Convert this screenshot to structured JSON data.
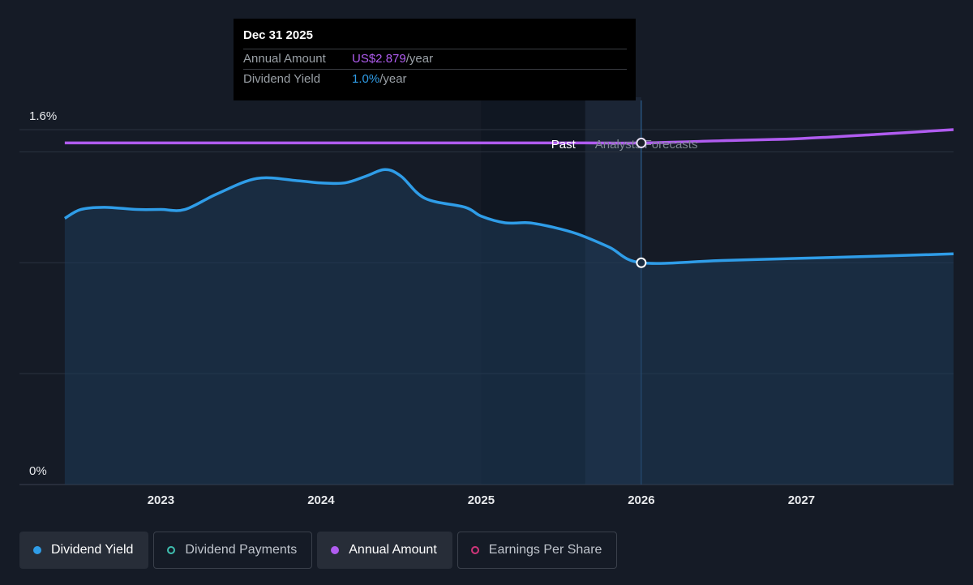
{
  "tooltip": {
    "date": "Dec 31 2025",
    "rows": [
      {
        "label": "Annual Amount",
        "value": "US$2.879",
        "unit": "/year"
      },
      {
        "label": "Dividend Yield",
        "value": "1.0%",
        "unit": "/year"
      }
    ]
  },
  "legend": [
    {
      "label": "Dividend Yield",
      "active": true,
      "color": "#2f9de8",
      "style": "filled"
    },
    {
      "label": "Dividend Payments",
      "active": false,
      "color": "#3fbfb0",
      "style": "ring"
    },
    {
      "label": "Annual Amount",
      "active": true,
      "color": "#b05cf0",
      "style": "filled"
    },
    {
      "label": "Earnings Per Share",
      "active": false,
      "color": "#d0357a",
      "style": "ring"
    }
  ],
  "chart_data": {
    "type": "line",
    "y_axis_labels": [
      "1.6%",
      "0%"
    ],
    "ylim": [
      0,
      1.6
    ],
    "xlim": [
      2022.35,
      2027.95
    ],
    "x_ticks": [
      2023,
      2024,
      2025,
      2026,
      2027
    ],
    "x_tick_labels": [
      "2023",
      "2024",
      "2025",
      "2026",
      "2027"
    ],
    "annotations": {
      "past": "Past",
      "forecast": "Analysts Forecasts",
      "forecast_start": 2025.65,
      "forecast_end": 2026.0
    },
    "colors": {
      "dividend_yield": "#2f9de8",
      "annual_amount": "#b05cf0"
    },
    "series": [
      {
        "name": "Dividend Yield",
        "x": [
          2022.4,
          2022.5,
          2022.65,
          2022.85,
          2023.0,
          2023.15,
          2023.35,
          2023.6,
          2023.85,
          2024.0,
          2024.15,
          2024.28,
          2024.4,
          2024.5,
          2024.65,
          2024.9,
          2025.0,
          2025.15,
          2025.3,
          2025.45,
          2025.6,
          2025.8,
          2026.0,
          2026.5,
          2027.0,
          2027.5,
          2027.95
        ],
        "y": [
          1.2,
          1.24,
          1.25,
          1.24,
          1.24,
          1.24,
          1.31,
          1.38,
          1.37,
          1.36,
          1.36,
          1.39,
          1.42,
          1.39,
          1.29,
          1.25,
          1.21,
          1.18,
          1.18,
          1.16,
          1.13,
          1.07,
          1.0,
          1.01,
          1.02,
          1.03,
          1.04
        ]
      },
      {
        "name": "Annual Amount",
        "x": [
          2022.4,
          2023.0,
          2024.0,
          2025.0,
          2025.65,
          2026.0,
          2026.5,
          2027.0,
          2027.5,
          2027.95
        ],
        "y": [
          1.54,
          1.54,
          1.54,
          1.54,
          1.54,
          1.54,
          1.55,
          1.56,
          1.58,
          1.6
        ]
      }
    ]
  }
}
